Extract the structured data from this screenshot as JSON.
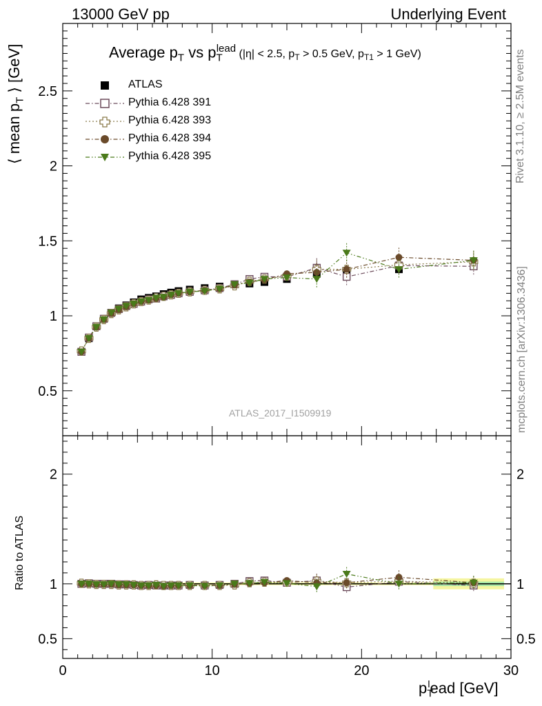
{
  "header": {
    "left": "13000 GeV pp",
    "right": "Underlying Event"
  },
  "side_text": {
    "rivet": "Rivet 3.1.10, ≥ 2.5M events",
    "mcplots": "mcplots.cern.ch [arXiv:1306.3436]"
  },
  "plot_title": {
    "main": "Average p",
    "sub_t": "T",
    "vs": " vs p",
    "sup_lead": "lead",
    "sub_t2": "T",
    "cuts": " (|η| < 2.5, p",
    "cuts_t": "T",
    "cuts2": " > 0.5 GeV, p",
    "cuts_t1": "T1",
    "cuts3": " > 1 GeV)"
  },
  "analysis_id": "ATLAS_2017_I1509919",
  "colors": {
    "atlas": "#000000",
    "p391": "#6b4a5a",
    "p393": "#8a7a4a",
    "p394": "#6a4a2a",
    "p395": "#4a7a1a",
    "band_yellow": "#f5f5a0",
    "band_green": "#a8e6a8"
  },
  "chart_data": [
    {
      "type": "scatter",
      "title": "",
      "xlabel_main": "p",
      "xlabel_sub": "T",
      "xlabel_sup": "l",
      "xlabel_rest": "ead [GeV]",
      "ylabel_main": "⟨ mean p",
      "ylabel_sub": "T",
      "ylabel_rest": " ⟩ [GeV]",
      "xlim": [
        0,
        30
      ],
      "ylim": [
        0.2,
        2.95
      ],
      "xticks": [
        0,
        10,
        20,
        30
      ],
      "yticks": [
        0.5,
        1,
        1.5,
        2,
        2.5
      ],
      "x": [
        1.25,
        1.75,
        2.25,
        2.75,
        3.25,
        3.75,
        4.25,
        4.75,
        5.25,
        5.75,
        6.25,
        6.75,
        7.25,
        7.75,
        8.5,
        9.5,
        10.5,
        11.5,
        12.5,
        13.5,
        15,
        17,
        19,
        22.5,
        27.5
      ],
      "series": [
        {
          "name": "ATLAS",
          "marker": "filled-square",
          "values": [
            0.76,
            0.85,
            0.93,
            0.98,
            1.02,
            1.05,
            1.07,
            1.09,
            1.11,
            1.12,
            1.13,
            1.145,
            1.155,
            1.165,
            1.175,
            1.185,
            1.195,
            1.21,
            1.215,
            1.225,
            1.245,
            1.28,
            1.3,
            1.31,
            1.355
          ]
        },
        {
          "name": "Pythia 6.428 391",
          "marker": "open-square",
          "values": [
            0.76,
            0.855,
            0.93,
            0.98,
            1.02,
            1.045,
            1.065,
            1.08,
            1.095,
            1.11,
            1.115,
            1.13,
            1.14,
            1.15,
            1.16,
            1.17,
            1.185,
            1.21,
            1.245,
            1.26,
            1.26,
            1.32,
            1.26,
            1.335,
            1.33
          ]
        },
        {
          "name": "Pythia 6.428 393",
          "marker": "open-cross",
          "values": [
            0.765,
            0.85,
            0.925,
            0.975,
            1.015,
            1.04,
            1.06,
            1.08,
            1.095,
            1.105,
            1.12,
            1.13,
            1.14,
            1.15,
            1.16,
            1.17,
            1.18,
            1.2,
            1.23,
            1.245,
            1.265,
            1.31,
            1.31,
            1.34,
            1.36
          ]
        },
        {
          "name": "Pythia 6.428 394",
          "marker": "filled-circle",
          "values": [
            0.76,
            0.85,
            0.925,
            0.975,
            1.015,
            1.04,
            1.06,
            1.08,
            1.095,
            1.105,
            1.115,
            1.125,
            1.14,
            1.15,
            1.16,
            1.17,
            1.18,
            1.205,
            1.225,
            1.24,
            1.28,
            1.29,
            1.31,
            1.39,
            1.37
          ]
        },
        {
          "name": "Pythia 6.428 395",
          "marker": "filled-triangle-down",
          "values": [
            0.76,
            0.85,
            0.925,
            0.975,
            1.02,
            1.045,
            1.065,
            1.08,
            1.095,
            1.105,
            1.12,
            1.125,
            1.14,
            1.15,
            1.16,
            1.165,
            1.18,
            1.21,
            1.22,
            1.245,
            1.255,
            1.245,
            1.42,
            1.31,
            1.37
          ]
        }
      ]
    },
    {
      "type": "scatter",
      "title": "",
      "ylabel": "Ratio to ATLAS",
      "xlim": [
        0,
        30
      ],
      "ylim": [
        0.32,
        2.35
      ],
      "yticks": [
        0.5,
        1,
        2
      ],
      "x": [
        1.25,
        1.75,
        2.25,
        2.75,
        3.25,
        3.75,
        4.25,
        4.75,
        5.25,
        5.75,
        6.25,
        6.75,
        7.25,
        7.75,
        8.5,
        9.5,
        10.5,
        11.5,
        12.5,
        13.5,
        15,
        17,
        19,
        22.5,
        27.5
      ],
      "series": [
        {
          "name": "Pythia 6.428 391",
          "values": [
            1.0,
            1.005,
            1.0,
            1.0,
            1.0,
            0.995,
            0.995,
            0.99,
            0.985,
            0.99,
            0.985,
            0.985,
            0.985,
            0.985,
            0.99,
            0.985,
            0.99,
            1.0,
            1.025,
            1.03,
            1.01,
            1.03,
            0.97,
            1.02,
            0.985
          ]
        },
        {
          "name": "Pythia 6.428 393",
          "values": [
            1.005,
            1.0,
            0.995,
            0.995,
            0.995,
            0.99,
            0.99,
            0.99,
            0.985,
            0.985,
            0.99,
            0.985,
            0.985,
            0.985,
            0.985,
            0.985,
            0.985,
            0.99,
            1.01,
            1.015,
            1.015,
            1.025,
            1.01,
            1.025,
            1.005
          ]
        },
        {
          "name": "Pythia 6.428 394",
          "values": [
            1.0,
            1.0,
            0.995,
            0.995,
            0.995,
            0.99,
            0.99,
            0.99,
            0.985,
            0.985,
            0.985,
            0.98,
            0.985,
            0.985,
            0.985,
            0.985,
            0.985,
            0.995,
            1.005,
            1.01,
            1.03,
            1.01,
            1.01,
            1.06,
            1.01
          ]
        },
        {
          "name": "Pythia 6.428 395",
          "values": [
            1.0,
            1.0,
            0.995,
            0.995,
            1.0,
            0.995,
            0.995,
            0.99,
            0.985,
            0.985,
            0.99,
            0.98,
            0.985,
            0.985,
            0.985,
            0.98,
            0.985,
            1.0,
            1.005,
            1.015,
            1.005,
            0.975,
            1.09,
            1.0,
            1.01
          ]
        }
      ]
    }
  ]
}
